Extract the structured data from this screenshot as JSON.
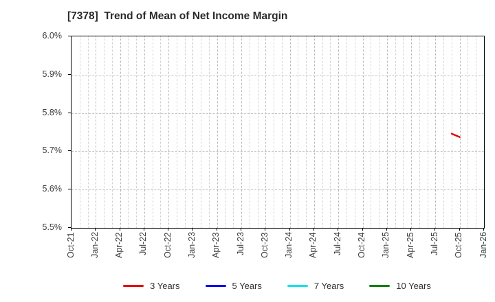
{
  "header": {
    "title": "[7378]  Trend of Mean of Net Income Margin"
  },
  "chart_data": {
    "type": "line",
    "title": "[7378]  Trend of Mean of Net Income Margin",
    "y_axis": {
      "format": "percent",
      "min": 5.5,
      "max": 6.0,
      "tick_step": 0.1,
      "tick_labels": [
        "5.5%",
        "5.6%",
        "5.7%",
        "5.8%",
        "5.9%",
        "6.0%"
      ]
    },
    "x_axis": {
      "tick_labels": [
        "Oct-21",
        "Jan-22",
        "Apr-22",
        "Jul-22",
        "Oct-22",
        "Jan-23",
        "Apr-23",
        "Jul-23",
        "Oct-23",
        "Jan-24",
        "Apr-24",
        "Jul-24",
        "Oct-24",
        "Jan-25",
        "Apr-25",
        "Jul-25",
        "Oct-25",
        "Jan-26"
      ],
      "months_total": 51,
      "major_every_months": 3,
      "minor_grid": "monthly"
    },
    "grid": true,
    "series": [
      {
        "name": "3 Years",
        "color": "#e60000",
        "points": [
          {
            "x_label": "Sep-25",
            "x_month": 47,
            "y": 5.746
          },
          {
            "x_label": "Oct-25",
            "x_month": 48,
            "y": 5.737
          }
        ]
      },
      {
        "name": "5 Years",
        "color": "#0000ee",
        "points": []
      },
      {
        "name": "7 Years",
        "color": "#00e5ee",
        "points": []
      },
      {
        "name": "10 Years",
        "color": "#008000",
        "points": []
      }
    ],
    "legend": {
      "position": "bottom",
      "labels": [
        "3 Years",
        "5 Years",
        "7 Years",
        "10 Years"
      ]
    }
  }
}
